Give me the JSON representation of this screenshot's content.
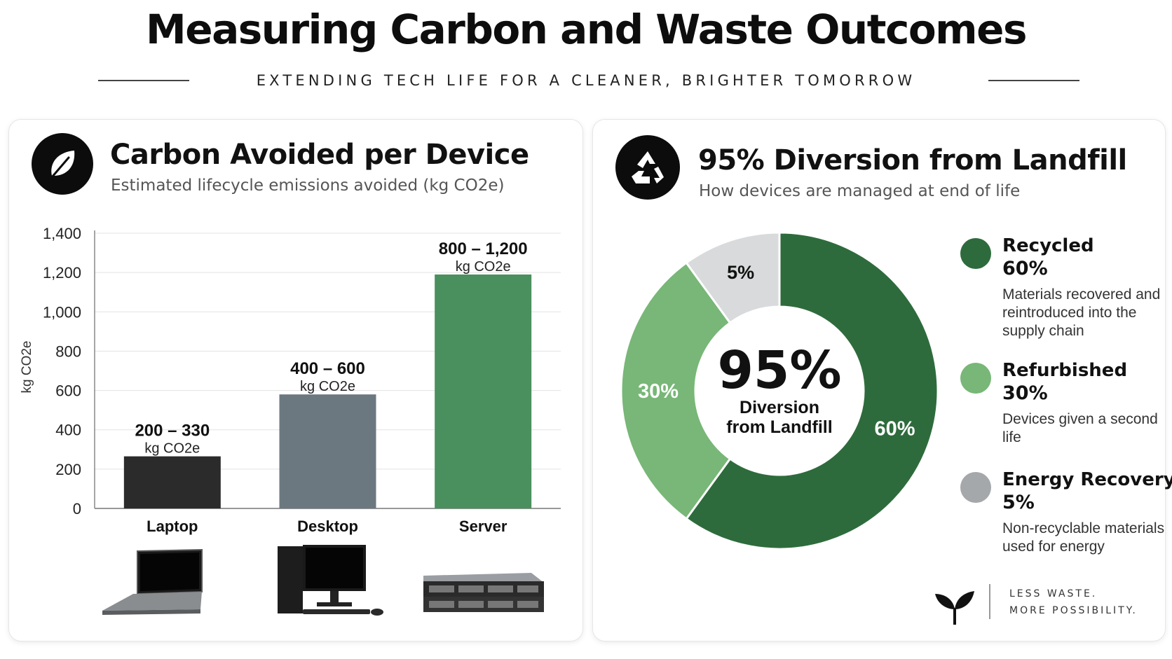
{
  "header": {
    "title": "Measuring Carbon and Waste Outcomes",
    "subtitle": "EXTENDING TECH LIFE FOR A CLEANER, BRIGHTER TOMORROW"
  },
  "left_card": {
    "icon": "leaf-icon",
    "title": "Carbon Avoided per Device",
    "subtitle": "Estimated lifecycle emissions avoided (kg CO2e)"
  },
  "right_card": {
    "icon": "recycle-icon",
    "title": "95% Diversion from Landfill",
    "subtitle": "How devices are managed at end of life",
    "center_value": "95%",
    "center_line1": "Diversion",
    "center_line2": "from Landfill",
    "legend": [
      {
        "name": "Recycled",
        "pct": "60%",
        "desc": "Materials recovered and reintroduced into the supply chain"
      },
      {
        "name": "Refurbished",
        "pct": "30%",
        "desc": "Devices given a second life"
      },
      {
        "name": "Energy Recovery",
        "pct": "5%",
        "desc": "Non-recyclable materials used for energy"
      }
    ],
    "tagline_1": "LESS WASTE.",
    "tagline_2": "MORE POSSIBILITY."
  },
  "chart_data": [
    {
      "type": "bar",
      "title": "Carbon Avoided per Device",
      "subtitle": "Estimated lifecycle emissions avoided (kg CO2e)",
      "ylabel": "kg CO2e",
      "xlabel": "",
      "ylim": [
        0,
        1400
      ],
      "yticks": [
        0,
        200,
        400,
        600,
        800,
        1000,
        1200,
        1400
      ],
      "ytick_labels": [
        "0",
        "200",
        "400",
        "600",
        "800",
        "1,000",
        "1,200",
        "1,400"
      ],
      "grid": true,
      "categories": [
        "Laptop",
        "Desktop",
        "Server"
      ],
      "values": [
        265,
        580,
        1190
      ],
      "ranges": [
        [
          200,
          330
        ],
        [
          400,
          600
        ],
        [
          800,
          1200
        ]
      ],
      "value_labels": [
        "200 – 330",
        "400 – 600",
        "800 – 1,200"
      ],
      "unit_label": "kg CO2e",
      "category_icons": [
        "laptop-icon",
        "desktop-icon",
        "server-icon"
      ],
      "colors": [
        "#2b2b2b",
        "#6b7880",
        "#4a8f5e"
      ]
    },
    {
      "type": "pie",
      "variant": "donut",
      "title": "95% Diversion from Landfill",
      "categories": [
        "Recycled",
        "Refurbished",
        "Energy Recovery"
      ],
      "values": [
        60,
        30,
        5
      ],
      "value_labels": [
        "60%",
        "30%",
        "5%"
      ],
      "colors": [
        "#2e6b3c",
        "#78b777",
        "#d8dadb"
      ],
      "legend": "right"
    }
  ]
}
